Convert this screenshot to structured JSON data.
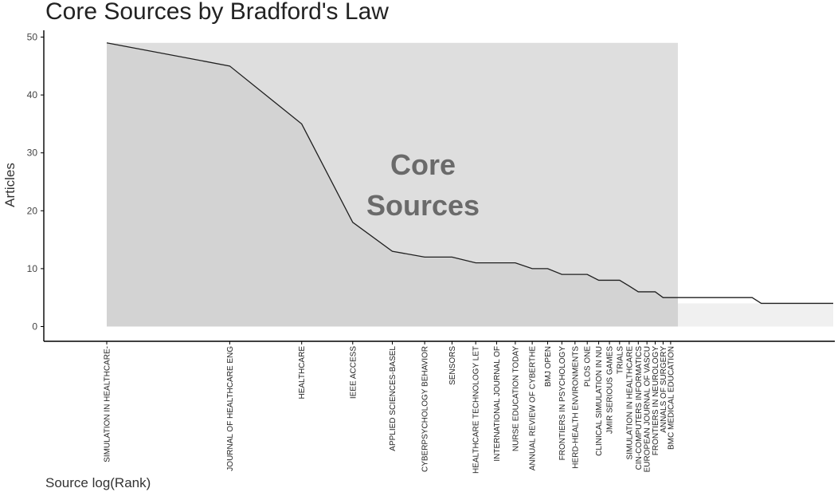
{
  "chart_data": {
    "type": "area",
    "title": "Core Sources by Bradford's Law",
    "xlabel": "Source log(Rank)",
    "ylabel": "Articles",
    "ylim": [
      0,
      50
    ],
    "yticks": [
      0,
      10,
      20,
      30,
      40,
      50
    ],
    "x_scale": "log",
    "rank_range": [
      1,
      60
    ],
    "core_zone_label_lines": [
      "Core",
      "Sources"
    ],
    "core_zone_last_rank": 25,
    "colors": {
      "core_zone": "#dedede",
      "area_fill": "#d3d3d3",
      "non_core_fill": "#f0f0f0",
      "line": "#1f1f1f"
    },
    "sources": [
      {
        "rank": 1,
        "name": "SIMULATION IN HEALTHCARE-",
        "articles": 49
      },
      {
        "rank": 2,
        "name": "JOURNAL OF HEALTHCARE ENG",
        "articles": 45
      },
      {
        "rank": 3,
        "name": "HEALTHCARE",
        "articles": 35
      },
      {
        "rank": 4,
        "name": "IEEE ACCESS",
        "articles": 18
      },
      {
        "rank": 5,
        "name": "APPLIED SCIENCES-BASEL",
        "articles": 13
      },
      {
        "rank": 6,
        "name": "CYBERPSYCHOLOGY BEHAVIOR",
        "articles": 12
      },
      {
        "rank": 7,
        "name": "SENSORS",
        "articles": 12
      },
      {
        "rank": 8,
        "name": "HEALTHCARE TECHNOLOGY LET",
        "articles": 11
      },
      {
        "rank": 9,
        "name": "INTERNATIONAL JOURNAL OF",
        "articles": 11
      },
      {
        "rank": 10,
        "name": "NURSE EDUCATION TODAY",
        "articles": 11
      },
      {
        "rank": 11,
        "name": "ANNUAL REVIEW OF CYBERTHE",
        "articles": 10
      },
      {
        "rank": 12,
        "name": "BMJ OPEN",
        "articles": 10
      },
      {
        "rank": 13,
        "name": "FRONTIERS IN PSYCHOLOGY",
        "articles": 9
      },
      {
        "rank": 14,
        "name": "HERD-HEALTH ENVIRONMENTS",
        "articles": 9
      },
      {
        "rank": 15,
        "name": "PLOS ONE",
        "articles": 9
      },
      {
        "rank": 16,
        "name": "CLINICAL SIMULATION IN NU",
        "articles": 8
      },
      {
        "rank": 17,
        "name": "JMIR SERIOUS GAMES",
        "articles": 8
      },
      {
        "rank": 18,
        "name": "TRIALS",
        "articles": 8
      },
      {
        "rank": 19,
        "name": "SIMULATION IN HEALTHCARE",
        "articles": 7
      },
      {
        "rank": 20,
        "name": "CIN-COMPUTERS INFORMATICS",
        "articles": 6
      },
      {
        "rank": 21,
        "name": "EUROPEAN JOURNAL OF VASCU",
        "articles": 6
      },
      {
        "rank": 22,
        "name": "FRONTIERS IN NEUROLOGY",
        "articles": 6
      },
      {
        "rank": 23,
        "name": "ANNALS OF SURGERY",
        "articles": 5
      },
      {
        "rank": 24,
        "name": "BMC MEDICAL EDUCATION",
        "articles": 5
      }
    ],
    "tail_points": [
      {
        "rank": 25,
        "articles": 5
      },
      {
        "rank": 38,
        "articles": 5
      },
      {
        "rank": 40,
        "articles": 4
      },
      {
        "rank": 60,
        "articles": 4
      }
    ]
  }
}
